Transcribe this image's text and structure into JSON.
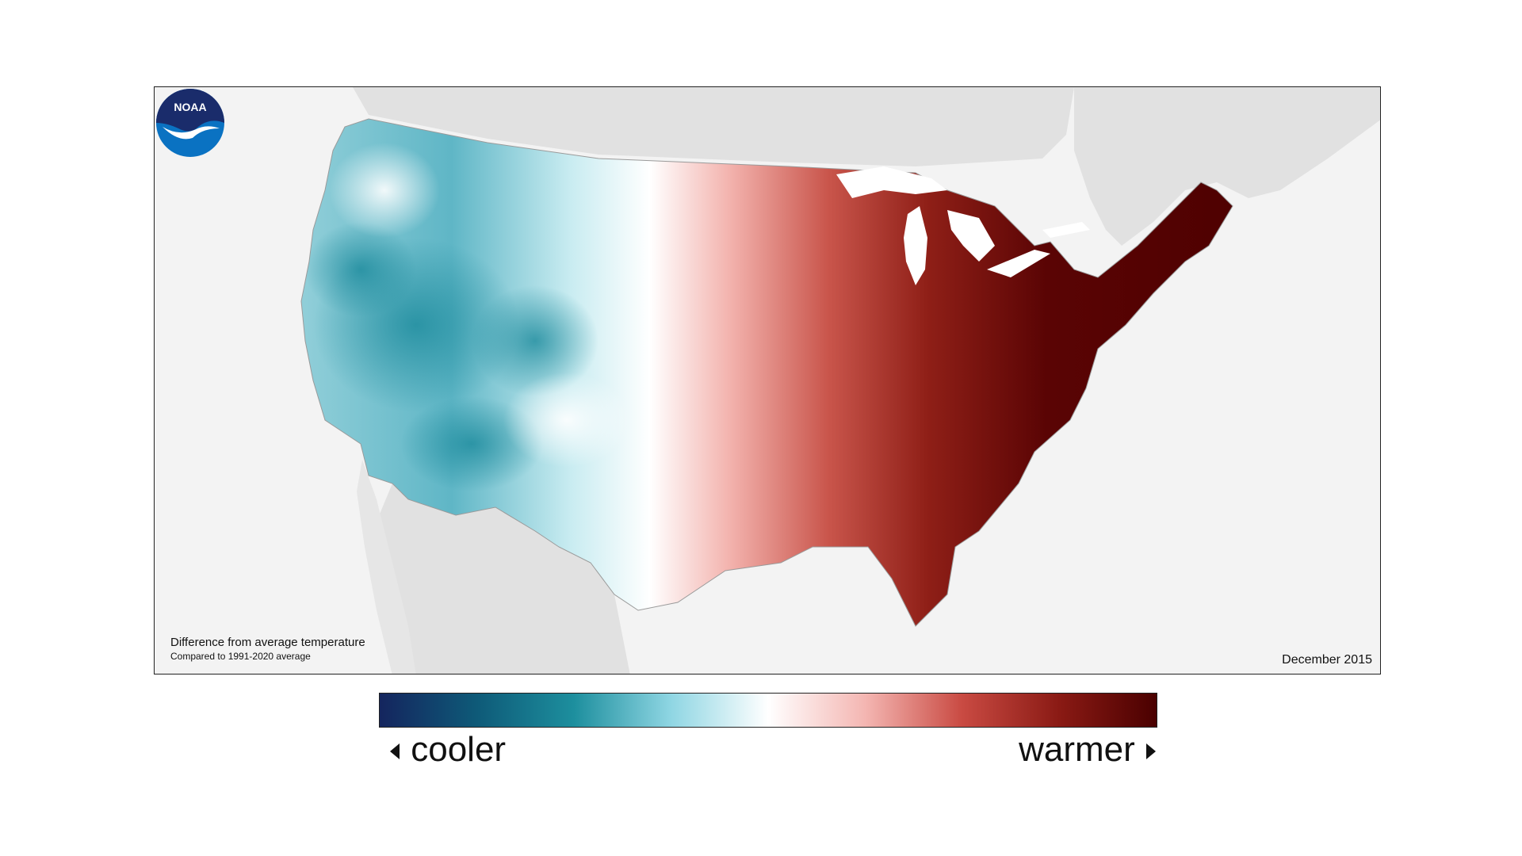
{
  "map": {
    "caption_title": "Difference from average temperature",
    "caption_subtitle": "Compared to 1991-2020 average",
    "date": "December 2015",
    "logo_text": "NOAA"
  },
  "legend": {
    "cooler_label": "cooler",
    "warmer_label": "warmer",
    "colors": [
      "#14255e",
      "#0e5a78",
      "#1d8f9e",
      "#8fd6e3",
      "#ffffff",
      "#f4b6b2",
      "#c94a42",
      "#8a1a14",
      "#4a0000"
    ]
  }
}
